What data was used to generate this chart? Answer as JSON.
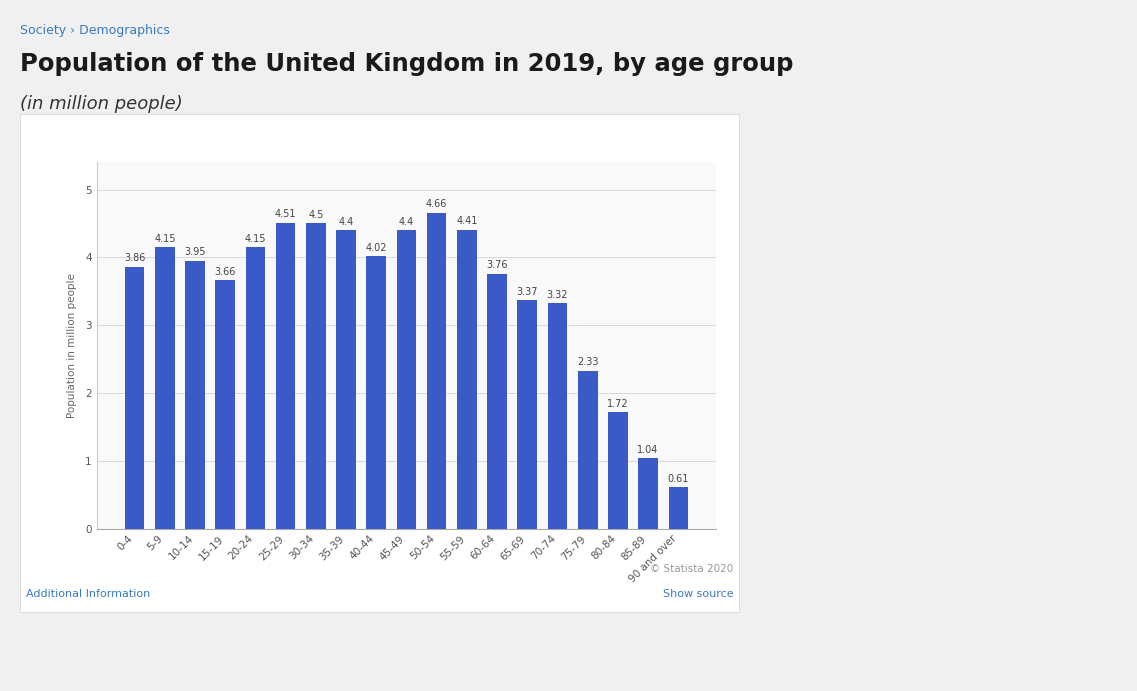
{
  "categories": [
    "0-4",
    "5-9",
    "10-14",
    "15-19",
    "20-24",
    "25-29",
    "30-34",
    "35-39",
    "40-44",
    "45-49",
    "50-54",
    "55-59",
    "60-64",
    "65-69",
    "70-74",
    "75-79",
    "80-84",
    "85-89",
    "90 and over"
  ],
  "values": [
    3.86,
    4.15,
    3.95,
    3.66,
    4.15,
    4.51,
    4.5,
    4.4,
    4.02,
    4.4,
    4.66,
    4.41,
    3.76,
    3.37,
    3.32,
    2.33,
    1.72,
    1.04,
    0.61
  ],
  "bar_color": "#3a5bc7",
  "ylabel": "Population in million people",
  "yticks": [
    0,
    1,
    2,
    3,
    4,
    5
  ],
  "ylim": [
    0,
    5.4
  ],
  "grid_color": "#d9d9d9",
  "page_bg": "#f0f0f0",
  "card_bg": "#ffffff",
  "plot_bg": "#f9f9f9",
  "breadcrumb": "Society › Demographics",
  "title": "Population of the United Kingdom in 2019, by age group",
  "subtitle": "(in million people)",
  "copyright": "© Statista 2020",
  "add_info": "Additional Information",
  "show_source": "Show source",
  "title_color": "#1a1a1a",
  "subtitle_color": "#333333",
  "breadcrumb_color": "#3a7abf",
  "link_color": "#3a7abf",
  "copyright_color": "#999999",
  "value_fontsize": 7,
  "tick_fontsize": 7.5,
  "ylabel_fontsize": 7.5
}
